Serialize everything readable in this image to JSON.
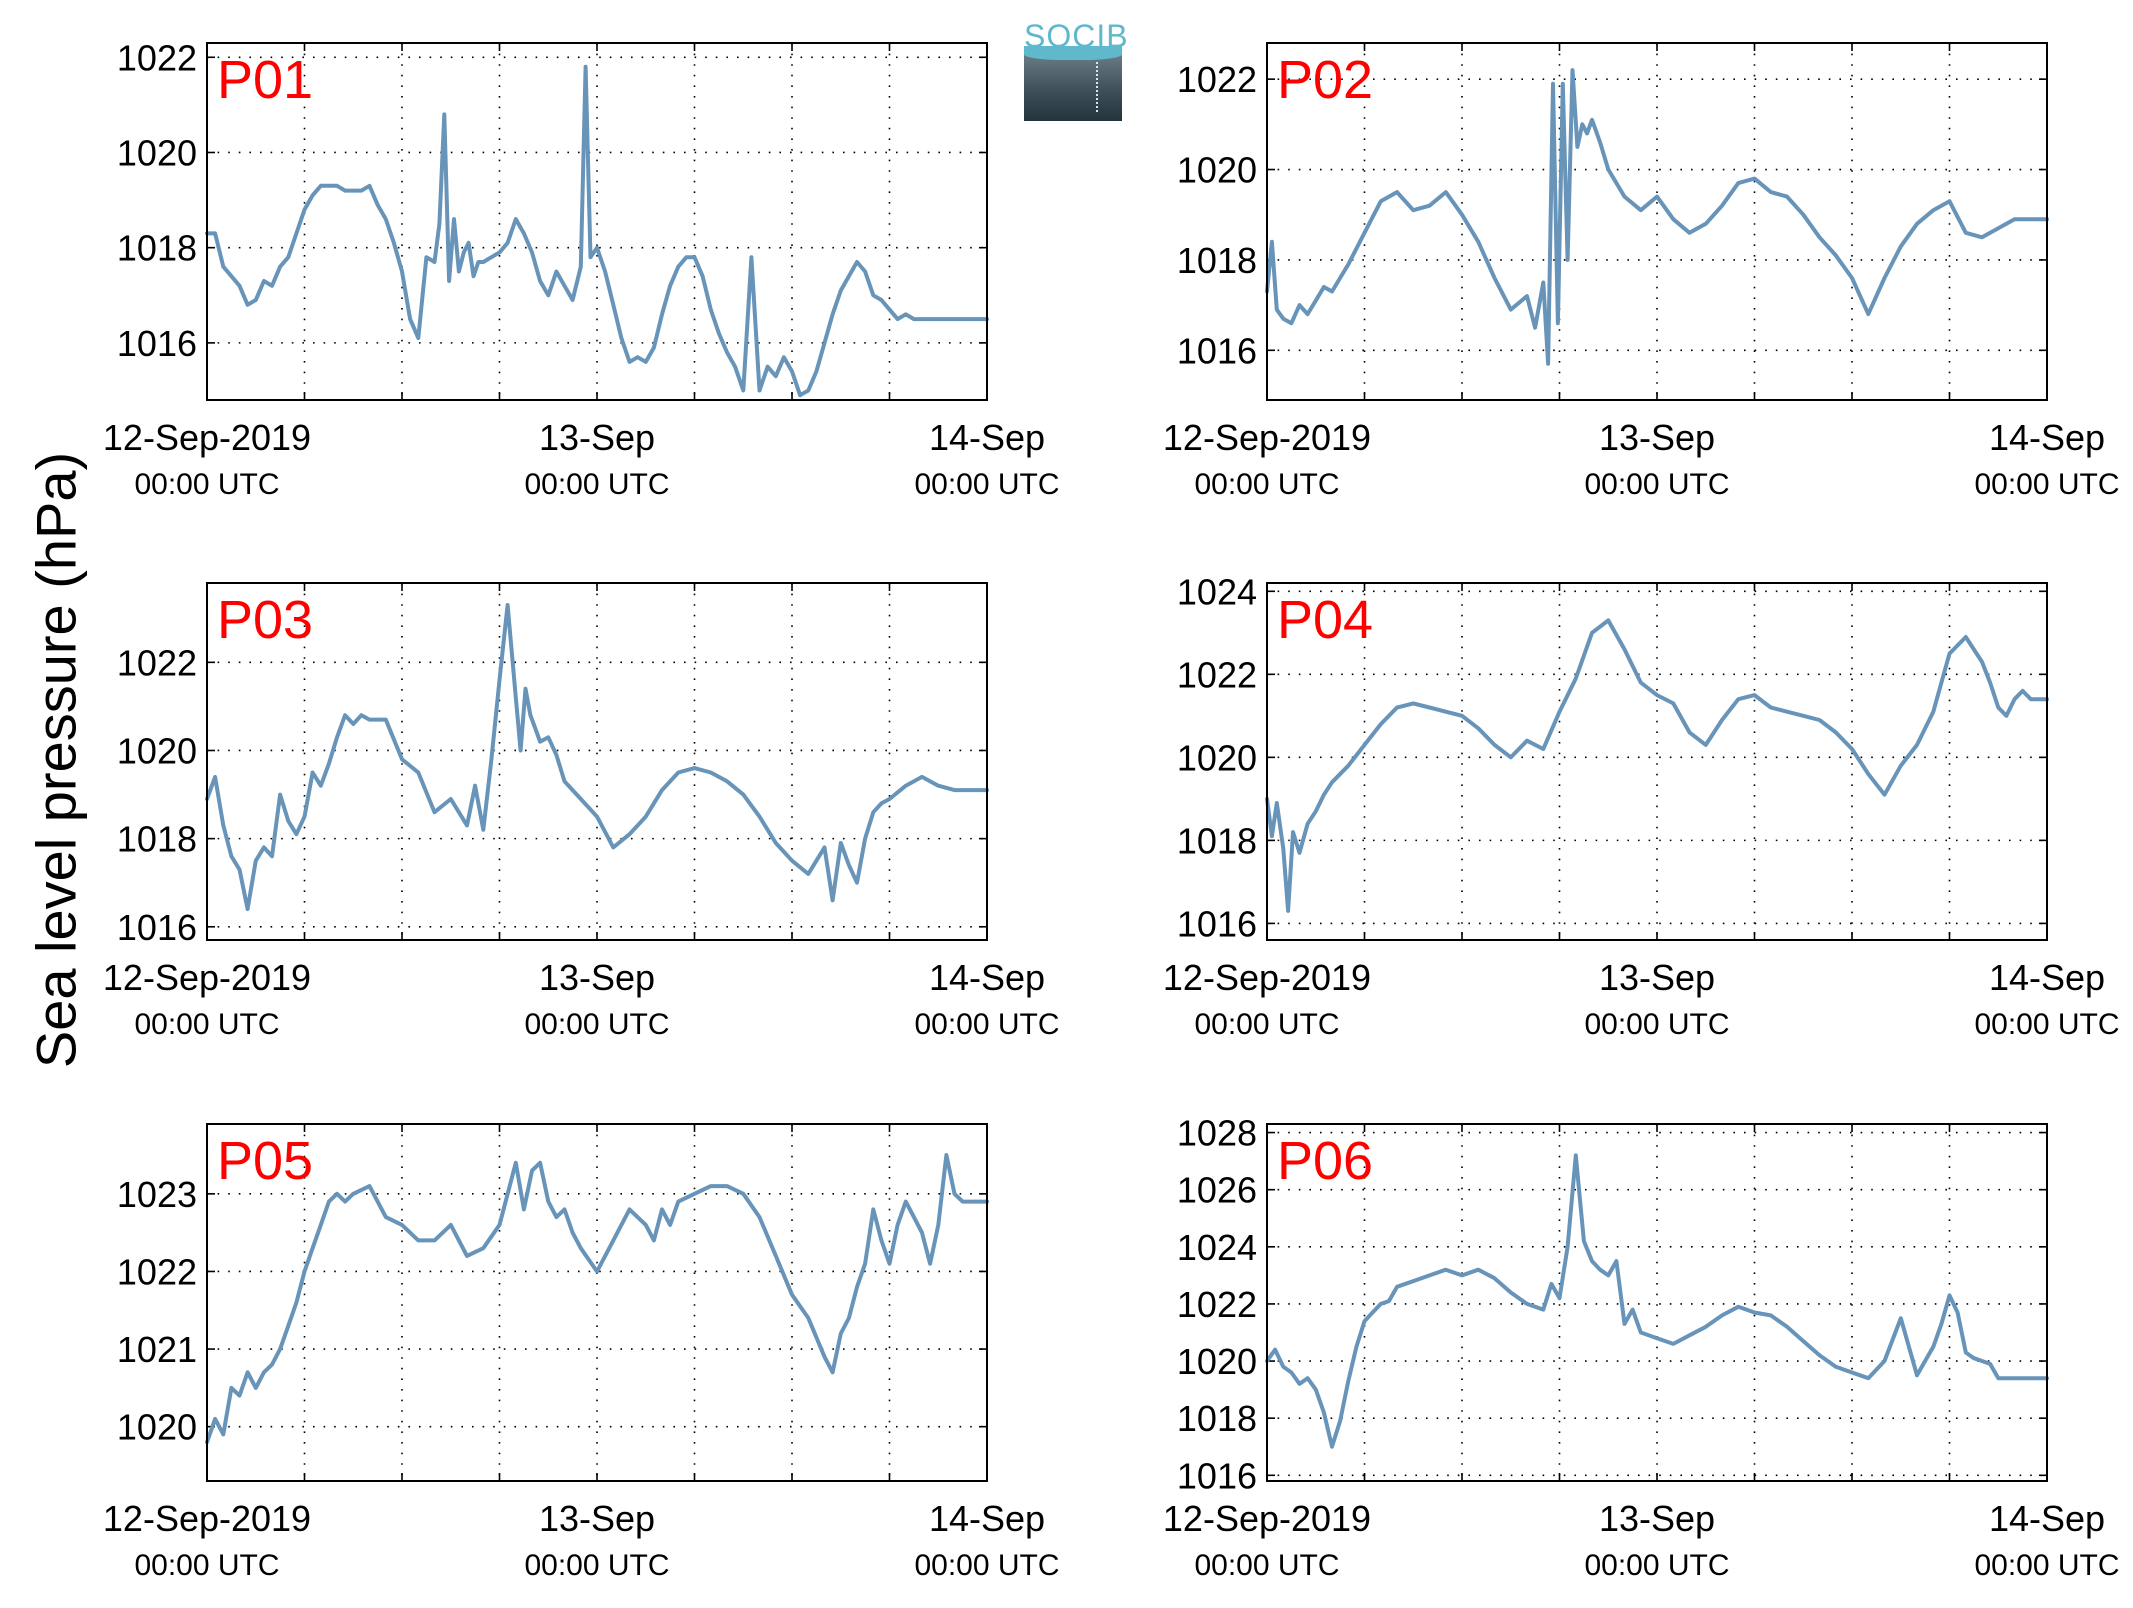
{
  "figure": {
    "ylabel": "Sea level pressure (hPa)",
    "logo_text": "SOCIB",
    "line_color": "#6794b8",
    "label_color": "#ff0000"
  },
  "chart_data": [
    {
      "type": "line",
      "label": "P01",
      "x_unit": "hours since 12-Sep-2019 00:00 UTC",
      "xlim": [
        0,
        48
      ],
      "ylim": [
        1014.8,
        1022.3
      ],
      "yticks": [
        1016,
        1018,
        1020,
        1022
      ],
      "xticks": [
        {
          "top": "12-Sep-2019",
          "bottom": "00:00 UTC"
        },
        {
          "top": "13-Sep",
          "bottom": "00:00 UTC"
        },
        {
          "top": "14-Sep",
          "bottom": "00:00 UTC"
        }
      ],
      "x": [
        0,
        0.5,
        1,
        1.5,
        2,
        2.5,
        3,
        3.5,
        4,
        4.5,
        5,
        5.5,
        6,
        6.5,
        7,
        7.5,
        8,
        8.5,
        9,
        9.5,
        10,
        10.5,
        11,
        11.5,
        12,
        12.5,
        13,
        13.5,
        14,
        14.3,
        14.6,
        14.9,
        15.2,
        15.5,
        15.8,
        16.1,
        16.4,
        16.7,
        17,
        17.5,
        18,
        18.5,
        19,
        19.5,
        20,
        20.5,
        21,
        21.5,
        22,
        22.5,
        23,
        23.3,
        23.6,
        24,
        24.5,
        25,
        25.5,
        26,
        26.5,
        27,
        27.5,
        28,
        28.5,
        29,
        29.5,
        30,
        30.5,
        31,
        31.5,
        32,
        32.5,
        33,
        33.5,
        34,
        34.5,
        35,
        35.5,
        36,
        36.5,
        37,
        37.5,
        38,
        38.5,
        39,
        39.5,
        40,
        40.5,
        41,
        41.5,
        42,
        42.5,
        43,
        43.5,
        44,
        44.5,
        45,
        45.5,
        46,
        46.5,
        47,
        47.5,
        48
      ],
      "y": [
        1018.3,
        1018.3,
        1017.6,
        1017.4,
        1017.2,
        1016.8,
        1016.9,
        1017.3,
        1017.2,
        1017.6,
        1017.8,
        1018.3,
        1018.8,
        1019.1,
        1019.3,
        1019.3,
        1019.3,
        1019.2,
        1019.2,
        1019.2,
        1019.3,
        1018.9,
        1018.6,
        1018.1,
        1017.5,
        1016.5,
        1016.1,
        1017.8,
        1017.7,
        1018.5,
        1020.8,
        1017.3,
        1018.6,
        1017.5,
        1017.9,
        1018.1,
        1017.4,
        1017.7,
        1017.7,
        1017.8,
        1017.9,
        1018.1,
        1018.6,
        1018.3,
        1017.9,
        1017.3,
        1017.0,
        1017.5,
        1017.2,
        1016.9,
        1017.6,
        1021.8,
        1017.8,
        1018.0,
        1017.5,
        1016.8,
        1016.1,
        1015.6,
        1015.7,
        1015.6,
        1015.9,
        1016.6,
        1017.2,
        1017.6,
        1017.8,
        1017.8,
        1017.4,
        1016.7,
        1016.2,
        1015.8,
        1015.5,
        1015.0,
        1017.8,
        1015.0,
        1015.5,
        1015.3,
        1015.7,
        1015.4,
        1014.9,
        1015.0,
        1015.4,
        1016.0,
        1016.6,
        1017.1,
        1017.4,
        1017.7,
        1017.5,
        1017.0,
        1016.9,
        1016.7,
        1016.5,
        1016.6,
        1016.5,
        1016.5,
        1016.5,
        1016.5,
        1016.5,
        1016.5,
        1016.5,
        1016.5,
        1016.5,
        1016.5
      ]
    },
    {
      "type": "line",
      "label": "P02",
      "x_unit": "hours since 12-Sep-2019 00:00 UTC",
      "xlim": [
        0,
        48
      ],
      "ylim": [
        1014.9,
        1022.8
      ],
      "yticks": [
        1016,
        1018,
        1020,
        1022
      ],
      "xticks": [
        {
          "top": "12-Sep-2019",
          "bottom": "00:00 UTC"
        },
        {
          "top": "13-Sep",
          "bottom": "00:00 UTC"
        },
        {
          "top": "14-Sep",
          "bottom": "00:00 UTC"
        }
      ],
      "x": [
        0,
        0.3,
        0.6,
        1,
        1.5,
        2,
        2.5,
        3,
        3.5,
        4,
        4.5,
        5,
        6,
        7,
        8,
        9,
        10,
        11,
        12,
        13,
        14,
        15,
        16,
        16.5,
        17,
        17.3,
        17.6,
        17.9,
        18.2,
        18.5,
        18.8,
        19.1,
        19.4,
        19.7,
        20,
        20.5,
        21,
        22,
        23,
        24,
        25,
        26,
        27,
        28,
        29,
        30,
        31,
        32,
        33,
        34,
        35,
        36,
        37,
        38,
        39,
        40,
        41,
        42,
        43,
        44,
        45,
        46,
        47,
        48
      ],
      "y": [
        1017.3,
        1018.4,
        1016.9,
        1016.7,
        1016.6,
        1017.0,
        1016.8,
        1017.1,
        1017.4,
        1017.3,
        1017.6,
        1017.9,
        1018.6,
        1019.3,
        1019.5,
        1019.1,
        1019.2,
        1019.5,
        1019.0,
        1018.4,
        1017.6,
        1016.9,
        1017.2,
        1016.5,
        1017.5,
        1015.7,
        1021.9,
        1016.6,
        1021.9,
        1018.0,
        1022.2,
        1020.5,
        1021.0,
        1020.8,
        1021.1,
        1020.6,
        1020.0,
        1019.4,
        1019.1,
        1019.4,
        1018.9,
        1018.6,
        1018.8,
        1019.2,
        1019.7,
        1019.8,
        1019.5,
        1019.4,
        1019.0,
        1018.5,
        1018.1,
        1017.6,
        1016.8,
        1017.6,
        1018.3,
        1018.8,
        1019.1,
        1019.3,
        1018.6,
        1018.5,
        1018.7,
        1018.9,
        1018.9,
        1018.9
      ]
    },
    {
      "type": "line",
      "label": "P03",
      "x_unit": "hours since 12-Sep-2019 00:00 UTC",
      "xlim": [
        0,
        48
      ],
      "ylim": [
        1015.7,
        1023.8
      ],
      "yticks": [
        1016,
        1018,
        1020,
        1022
      ],
      "xticks": [
        {
          "top": "12-Sep-2019",
          "bottom": "00:00 UTC"
        },
        {
          "top": "13-Sep",
          "bottom": "00:00 UTC"
        },
        {
          "top": "14-Sep",
          "bottom": "00:00 UTC"
        }
      ],
      "x": [
        0,
        0.5,
        1,
        1.5,
        2,
        2.5,
        3,
        3.5,
        4,
        4.5,
        5,
        5.5,
        6,
        6.5,
        7,
        7.5,
        8,
        8.5,
        9,
        9.5,
        10,
        11,
        12,
        13,
        14,
        15,
        16,
        16.5,
        17,
        17.5,
        18,
        18.5,
        19,
        19.3,
        19.6,
        19.9,
        20.2,
        20.5,
        21,
        21.5,
        22,
        22.5,
        23,
        23.5,
        24,
        25,
        26,
        27,
        28,
        29,
        30,
        31,
        32,
        33,
        34,
        35,
        36,
        37,
        38,
        38.5,
        39,
        39.5,
        40,
        40.5,
        41,
        41.5,
        42,
        43,
        44,
        45,
        46,
        47,
        48
      ],
      "y": [
        1018.9,
        1019.4,
        1018.3,
        1017.6,
        1017.3,
        1016.4,
        1017.5,
        1017.8,
        1017.6,
        1019.0,
        1018.4,
        1018.1,
        1018.5,
        1019.5,
        1019.2,
        1019.7,
        1020.3,
        1020.8,
        1020.6,
        1020.8,
        1020.7,
        1020.7,
        1019.8,
        1019.5,
        1018.6,
        1018.9,
        1018.3,
        1019.2,
        1018.2,
        1019.8,
        1021.6,
        1023.3,
        1021.2,
        1020.0,
        1021.4,
        1020.8,
        1020.5,
        1020.2,
        1020.3,
        1019.9,
        1019.3,
        1019.1,
        1018.9,
        1018.7,
        1018.5,
        1017.8,
        1018.1,
        1018.5,
        1019.1,
        1019.5,
        1019.6,
        1019.5,
        1019.3,
        1019.0,
        1018.5,
        1017.9,
        1017.5,
        1017.2,
        1017.8,
        1016.6,
        1017.9,
        1017.4,
        1017.0,
        1018.0,
        1018.6,
        1018.8,
        1018.9,
        1019.2,
        1019.4,
        1019.2,
        1019.1,
        1019.1,
        1019.1
      ]
    },
    {
      "type": "line",
      "label": "P04",
      "x_unit": "hours since 12-Sep-2019 00:00 UTC",
      "xlim": [
        0,
        48
      ],
      "ylim": [
        1015.6,
        1024.2
      ],
      "yticks": [
        1016,
        1018,
        1020,
        1022,
        1024
      ],
      "xticks": [
        {
          "top": "12-Sep-2019",
          "bottom": "00:00 UTC"
        },
        {
          "top": "13-Sep",
          "bottom": "00:00 UTC"
        },
        {
          "top": "14-Sep",
          "bottom": "00:00 UTC"
        }
      ],
      "x": [
        0,
        0.3,
        0.6,
        1,
        1.3,
        1.6,
        2,
        2.5,
        3,
        3.5,
        4,
        5,
        6,
        7,
        8,
        9,
        10,
        11,
        12,
        13,
        14,
        15,
        16,
        17,
        18,
        19,
        20,
        21,
        22,
        23,
        24,
        25,
        26,
        27,
        28,
        29,
        30,
        31,
        32,
        33,
        34,
        35,
        36,
        37,
        38,
        39,
        40,
        41,
        42,
        43,
        44,
        44.5,
        45,
        45.5,
        46,
        46.5,
        47,
        47.5,
        48
      ],
      "y": [
        1019.0,
        1018.1,
        1018.9,
        1017.8,
        1016.3,
        1018.2,
        1017.7,
        1018.4,
        1018.7,
        1019.1,
        1019.4,
        1019.8,
        1020.3,
        1020.8,
        1021.2,
        1021.3,
        1021.2,
        1021.1,
        1021.0,
        1020.7,
        1020.3,
        1020.0,
        1020.4,
        1020.2,
        1021.1,
        1021.9,
        1023.0,
        1023.3,
        1022.6,
        1021.8,
        1021.5,
        1021.3,
        1020.6,
        1020.3,
        1020.9,
        1021.4,
        1021.5,
        1021.2,
        1021.1,
        1021.0,
        1020.9,
        1020.6,
        1020.2,
        1019.6,
        1019.1,
        1019.8,
        1020.3,
        1021.1,
        1022.5,
        1022.9,
        1022.3,
        1021.8,
        1021.2,
        1021.0,
        1021.4,
        1021.6,
        1021.4,
        1021.4,
        1021.4
      ]
    },
    {
      "type": "line",
      "label": "P05",
      "x_unit": "hours since 12-Sep-2019 00:00 UTC",
      "xlim": [
        0,
        48
      ],
      "ylim": [
        1019.3,
        1023.9
      ],
      "yticks": [
        1020,
        1021,
        1022,
        1023
      ],
      "xticks": [
        {
          "top": "12-Sep-2019",
          "bottom": "00:00 UTC"
        },
        {
          "top": "13-Sep",
          "bottom": "00:00 UTC"
        },
        {
          "top": "14-Sep",
          "bottom": "00:00 UTC"
        }
      ],
      "x": [
        0,
        0.5,
        1,
        1.5,
        2,
        2.5,
        3,
        3.5,
        4,
        4.5,
        5,
        5.5,
        6,
        6.5,
        7,
        7.5,
        8,
        8.5,
        9,
        10,
        11,
        12,
        13,
        14,
        15,
        16,
        17,
        18,
        19,
        19.5,
        20,
        20.5,
        21,
        21.5,
        22,
        22.5,
        23,
        24,
        25,
        26,
        27,
        27.5,
        28,
        28.5,
        29,
        30,
        31,
        32,
        33,
        34,
        35,
        36,
        37,
        38,
        38.5,
        39,
        39.5,
        40,
        40.5,
        41,
        41.5,
        42,
        42.5,
        43,
        43.5,
        44,
        44.5,
        45,
        45.5,
        46,
        46.5,
        47,
        47.5,
        48
      ],
      "y": [
        1019.8,
        1020.1,
        1019.9,
        1020.5,
        1020.4,
        1020.7,
        1020.5,
        1020.7,
        1020.8,
        1021.0,
        1021.3,
        1021.6,
        1022.0,
        1022.3,
        1022.6,
        1022.9,
        1023.0,
        1022.9,
        1023.0,
        1023.1,
        1022.7,
        1022.6,
        1022.4,
        1022.4,
        1022.6,
        1022.2,
        1022.3,
        1022.6,
        1023.4,
        1022.8,
        1023.3,
        1023.4,
        1022.9,
        1022.7,
        1022.8,
        1022.5,
        1022.3,
        1022.0,
        1022.4,
        1022.8,
        1022.6,
        1022.4,
        1022.8,
        1022.6,
        1022.9,
        1023.0,
        1023.1,
        1023.1,
        1023.0,
        1022.7,
        1022.2,
        1021.7,
        1021.4,
        1020.9,
        1020.7,
        1021.2,
        1021.4,
        1021.8,
        1022.1,
        1022.8,
        1022.4,
        1022.1,
        1022.6,
        1022.9,
        1022.7,
        1022.5,
        1022.1,
        1022.6,
        1023.5,
        1023.0,
        1022.9,
        1022.9,
        1022.9,
        1022.9
      ]
    },
    {
      "type": "line",
      "label": "P06",
      "x_unit": "hours since 12-Sep-2019 00:00 UTC",
      "xlim": [
        0,
        48
      ],
      "ylim": [
        1015.8,
        1028.3
      ],
      "yticks": [
        1016,
        1018,
        1020,
        1022,
        1024,
        1026,
        1028
      ],
      "xticks": [
        {
          "top": "12-Sep-2019",
          "bottom": "00:00 UTC"
        },
        {
          "top": "13-Sep",
          "bottom": "00:00 UTC"
        },
        {
          "top": "14-Sep",
          "bottom": "00:00 UTC"
        }
      ],
      "x": [
        0,
        0.5,
        1,
        1.5,
        2,
        2.5,
        3,
        3.5,
        4,
        4.5,
        5,
        5.5,
        6,
        6.5,
        7,
        7.5,
        8,
        9,
        10,
        11,
        12,
        13,
        14,
        15,
        16,
        17,
        17.5,
        18,
        18.5,
        19,
        19.5,
        20,
        20.5,
        21,
        21.5,
        22,
        22.5,
        23,
        24,
        25,
        26,
        27,
        28,
        29,
        30,
        31,
        32,
        33,
        34,
        35,
        36,
        37,
        38,
        39,
        40,
        40.5,
        41,
        41.5,
        42,
        42.5,
        43,
        43.5,
        44,
        44.5,
        45,
        45.5,
        46,
        46.5,
        47,
        47.5,
        48
      ],
      "y": [
        1020.0,
        1020.4,
        1019.8,
        1019.6,
        1019.2,
        1019.4,
        1019.0,
        1018.2,
        1017.0,
        1017.9,
        1019.3,
        1020.5,
        1021.4,
        1021.7,
        1022.0,
        1022.1,
        1022.6,
        1022.8,
        1023.0,
        1023.2,
        1023.0,
        1023.2,
        1022.9,
        1022.4,
        1022.0,
        1021.8,
        1022.7,
        1022.2,
        1024.0,
        1027.2,
        1024.2,
        1023.5,
        1023.2,
        1023.0,
        1023.5,
        1021.3,
        1021.8,
        1021.0,
        1020.8,
        1020.6,
        1020.9,
        1021.2,
        1021.6,
        1021.9,
        1021.7,
        1021.6,
        1021.2,
        1020.7,
        1020.2,
        1019.8,
        1019.6,
        1019.4,
        1020.0,
        1021.5,
        1019.5,
        1020.0,
        1020.5,
        1021.3,
        1022.3,
        1021.7,
        1020.3,
        1020.1,
        1020.0,
        1019.9,
        1019.4,
        1019.4,
        1019.4,
        1019.4,
        1019.4,
        1019.4,
        1019.4
      ]
    }
  ]
}
